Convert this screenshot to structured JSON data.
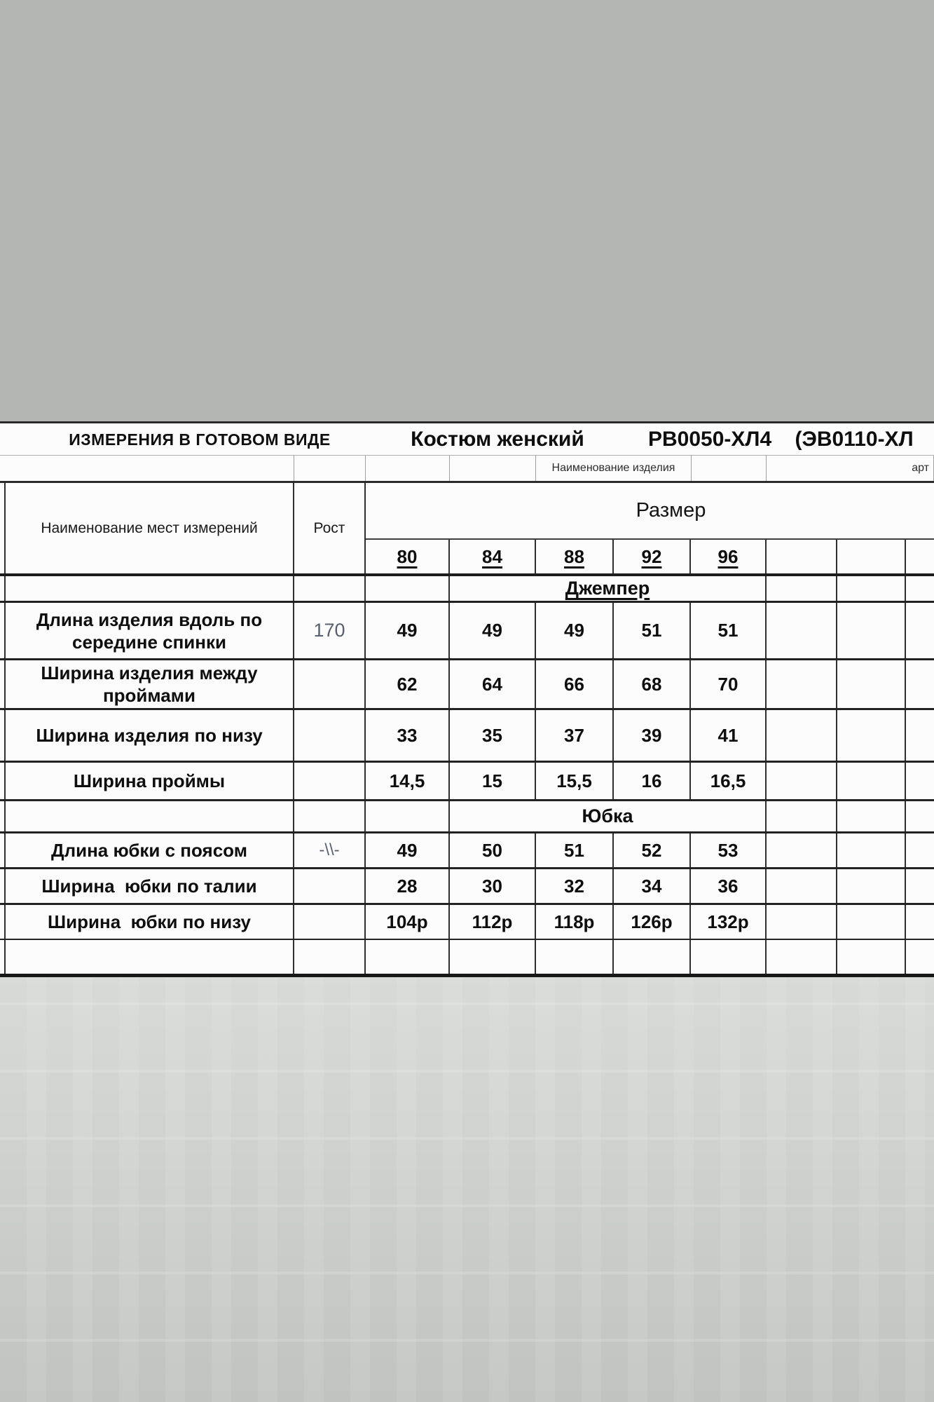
{
  "colors": {
    "page_bg": "#b3b5b3",
    "sheet_bg": "#fcfcfc",
    "line": "#2e2e2e",
    "muted_value": "#57606e"
  },
  "header": {
    "title_left": "ИЗМЕРЕНИЯ В ГОТОВОМ ВИДЕ",
    "product_title": "Костюм женский",
    "article_title": "РВ0050-ХЛ4    (ЭВ0110-ХЛ",
    "product_label_small": "Наименование изделия",
    "article_label_small": "арт"
  },
  "table": {
    "name_header": "Наименование мест измерений",
    "height_header": "Рост",
    "size_header": "Размер",
    "sizes": [
      "80",
      "84",
      "88",
      "92",
      "96"
    ],
    "section_jumper": "Джемпер",
    "section_skirt": "Юбка",
    "rows": [
      {
        "label_lines": [
          "Длина изделия вдоль по",
          "середине спинки"
        ],
        "rost": "170",
        "values": [
          "49",
          "49",
          "49",
          "51",
          "51"
        ]
      },
      {
        "label_lines": [
          "Ширина изделия между",
          "проймами"
        ],
        "rost": "",
        "values": [
          "62",
          "64",
          "66",
          "68",
          "70"
        ]
      },
      {
        "label_lines": [
          "Ширина изделия по низу"
        ],
        "rost": "",
        "values": [
          "33",
          "35",
          "37",
          "39",
          "41"
        ]
      },
      {
        "label_lines": [
          "Ширина проймы"
        ],
        "rost": "",
        "values": [
          "14,5",
          "15",
          "15,5",
          "16",
          "16,5"
        ]
      },
      {
        "label_lines": [
          "Длина юбки с поясом"
        ],
        "rost": "-\\\\-",
        "values": [
          "49",
          "50",
          "51",
          "52",
          "53"
        ]
      },
      {
        "label_lines": [
          "Ширина  юбки по талии"
        ],
        "rost": "",
        "values": [
          "28",
          "30",
          "32",
          "34",
          "36"
        ]
      },
      {
        "label_lines": [
          "Ширина  юбки по низу"
        ],
        "rost": "",
        "values": [
          "104р",
          "112р",
          "118р",
          "126р",
          "132р"
        ]
      }
    ]
  }
}
